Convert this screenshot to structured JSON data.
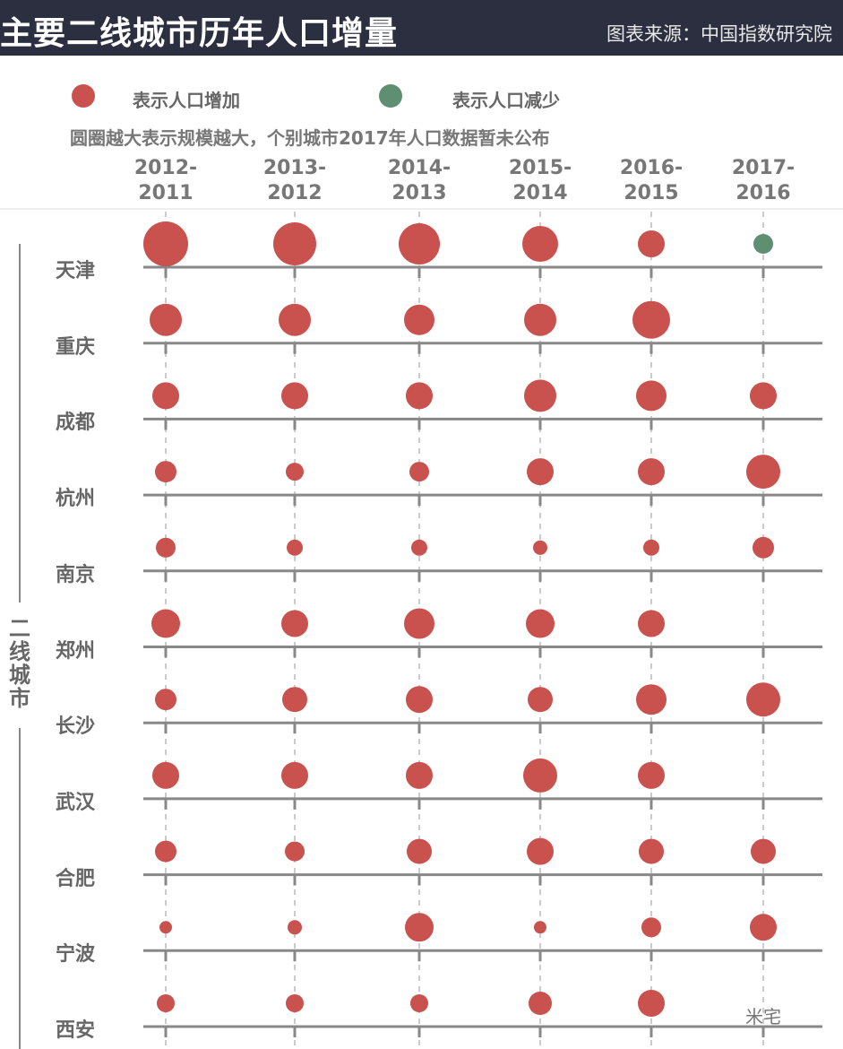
{
  "header": {
    "title": "主要二线城市历年人口增量",
    "source": "图表来源：中国指数研究院"
  },
  "legend": {
    "increase": "表示人口增加",
    "decrease": "表示人口减少",
    "note": "圆圈越大表示规模越大，个别城市2017年人口数据暂未公布"
  },
  "colors": {
    "increase": "#c9514e",
    "decrease": "#5f8f72",
    "header_bg": "#2b2f3f"
  },
  "group_label": "二线城市",
  "watermark": "米宅",
  "chart_data": {
    "type": "scatter",
    "title": "主要二线城市历年人口增量",
    "categories": [
      "2012-\n2011",
      "2013-\n2012",
      "2014-\n2013",
      "2015-\n2014",
      "2016-\n2015",
      "2017-\n2016"
    ],
    "size_scale": "relative bubble diameter (no axis printed)",
    "series": [
      {
        "city": "天津",
        "sizes": [
          50,
          48,
          46,
          40,
          30,
          22
        ],
        "direction": [
          "increase",
          "increase",
          "increase",
          "increase",
          "increase",
          "decrease"
        ]
      },
      {
        "city": "重庆",
        "sizes": [
          36,
          36,
          34,
          36,
          42,
          null
        ]
      },
      {
        "city": "成都",
        "sizes": [
          30,
          30,
          30,
          36,
          34,
          30
        ]
      },
      {
        "city": "杭州",
        "sizes": [
          24,
          20,
          22,
          30,
          30,
          38
        ]
      },
      {
        "city": "南京",
        "sizes": [
          22,
          18,
          18,
          16,
          18,
          24
        ]
      },
      {
        "city": "郑州",
        "sizes": [
          32,
          30,
          34,
          32,
          30,
          null
        ]
      },
      {
        "city": "长沙",
        "sizes": [
          24,
          28,
          30,
          28,
          34,
          38
        ]
      },
      {
        "city": "武汉",
        "sizes": [
          30,
          30,
          30,
          38,
          30,
          null
        ]
      },
      {
        "city": "合肥",
        "sizes": [
          24,
          22,
          28,
          30,
          28,
          28
        ]
      },
      {
        "city": "宁波",
        "sizes": [
          14,
          16,
          32,
          14,
          22,
          30
        ]
      },
      {
        "city": "西安",
        "sizes": [
          20,
          20,
          20,
          26,
          30,
          null
        ]
      }
    ]
  }
}
